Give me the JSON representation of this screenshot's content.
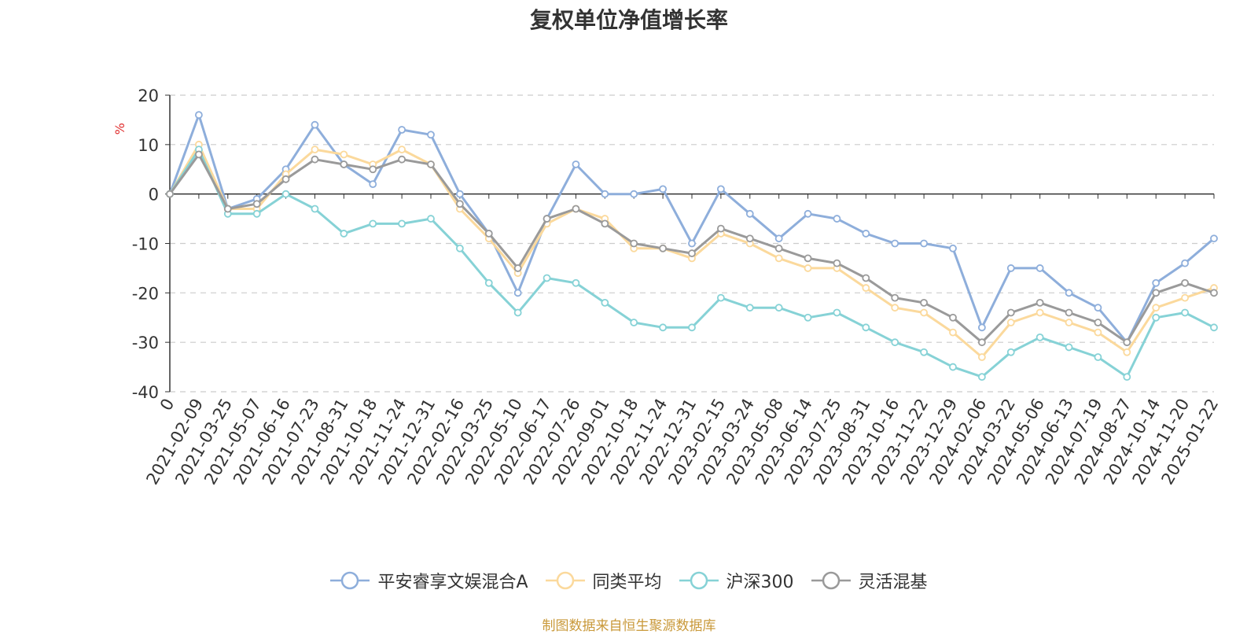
{
  "chart_data": {
    "type": "line",
    "title": "复权单位净值增长率",
    "ylabel": "%",
    "xlabel": "",
    "ylim": [
      -40,
      20
    ],
    "yticks": [
      20,
      10,
      0,
      -10,
      -20,
      -30,
      -40
    ],
    "grid": true,
    "legend_position": "bottom",
    "x": [
      "0",
      "2021-02-09",
      "2021-03-25",
      "2021-05-07",
      "2021-06-16",
      "2021-07-23",
      "2021-08-31",
      "2021-10-18",
      "2021-11-24",
      "2021-12-31",
      "2022-02-16",
      "2022-03-25",
      "2022-05-10",
      "2022-06-17",
      "2022-07-26",
      "2022-09-01",
      "2022-10-18",
      "2022-11-24",
      "2022-12-31",
      "2023-02-15",
      "2023-03-24",
      "2023-05-08",
      "2023-06-14",
      "2023-07-25",
      "2023-08-31",
      "2023-10-16",
      "2023-11-22",
      "2023-12-29",
      "2024-02-06",
      "2024-03-22",
      "2024-05-06",
      "2024-06-13",
      "2024-07-19",
      "2024-08-27",
      "2024-10-14",
      "2024-11-20",
      "2025-01-22"
    ],
    "series": [
      {
        "name": "平安睿享文娱混合A",
        "color": "#8eaedb",
        "values": [
          0,
          16,
          -3,
          -1,
          5,
          14,
          6,
          2,
          13,
          12,
          0,
          -8,
          -20,
          -5,
          6,
          0,
          0,
          1,
          -10,
          1,
          -4,
          -9,
          -4,
          -5,
          -8,
          -10,
          -10,
          -11,
          -27,
          -15,
          -15,
          -20,
          -23,
          -30,
          -18,
          -14,
          -9
        ]
      },
      {
        "name": "同类平均",
        "color": "#fbd99c",
        "values": [
          0,
          10,
          -3,
          -3,
          4,
          9,
          8,
          6,
          9,
          6,
          -3,
          -9,
          -16,
          -6,
          -3,
          -5,
          -11,
          -11,
          -13,
          -8,
          -10,
          -13,
          -15,
          -15,
          -19,
          -23,
          -24,
          -28,
          -33,
          -26,
          -24,
          -26,
          -28,
          -32,
          -23,
          -21,
          -19
        ]
      },
      {
        "name": "沪深300",
        "color": "#86d2d6",
        "values": [
          0,
          9,
          -4,
          -4,
          0,
          -3,
          -8,
          -6,
          -6,
          -5,
          -11,
          -18,
          -24,
          -17,
          -18,
          -22,
          -26,
          -27,
          -27,
          -21,
          -23,
          -23,
          -25,
          -24,
          -27,
          -30,
          -32,
          -35,
          -37,
          -32,
          -29,
          -31,
          -33,
          -37,
          -25,
          -24,
          -27
        ]
      },
      {
        "name": "灵活混基",
        "color": "#9a9a9a",
        "values": [
          0,
          8,
          -3,
          -2,
          3,
          7,
          6,
          5,
          7,
          6,
          -2,
          -8,
          -15,
          -5,
          -3,
          -6,
          -10,
          -11,
          -12,
          -7,
          -9,
          -11,
          -13,
          -14,
          -17,
          -21,
          -22,
          -25,
          -30,
          -24,
          -22,
          -24,
          -26,
          -30,
          -20,
          -18,
          -20
        ]
      }
    ]
  },
  "source_note": "制图数据来自恒生聚源数据库"
}
